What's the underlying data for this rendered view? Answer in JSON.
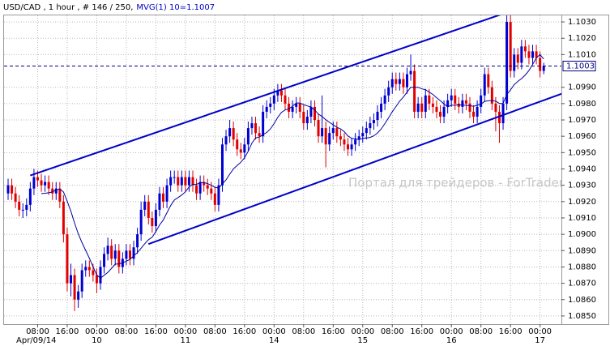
{
  "chart_data": {
    "type": "candlestick",
    "title": "USD/CAD , 1 hour , # 146 / 250,",
    "indicator_label": "MVG(1) 10=1.1007",
    "watermark": "Портал для трейдеров - ForTrader.ru",
    "up_color": "#0000d0",
    "down_color": "#e00000",
    "ma_color": "#0000a0",
    "channel_color": "#0000c8",
    "ylim": [
      1.0845,
      1.1034
    ],
    "yticks": [
      {
        "value": 1.085,
        "label": "1.0850"
      },
      {
        "value": 1.086,
        "label": "1.0860"
      },
      {
        "value": 1.087,
        "label": "1.0870"
      },
      {
        "value": 1.088,
        "label": "1.0880"
      },
      {
        "value": 1.089,
        "label": "1.0890"
      },
      {
        "value": 1.09,
        "label": "1.0900"
      },
      {
        "value": 1.091,
        "label": "1.0910"
      },
      {
        "value": 1.092,
        "label": "1.0920"
      },
      {
        "value": 1.093,
        "label": "1.0930"
      },
      {
        "value": 1.094,
        "label": "1.0940"
      },
      {
        "value": 1.095,
        "label": "1.0950"
      },
      {
        "value": 1.096,
        "label": "1.0960"
      },
      {
        "value": 1.097,
        "label": "1.0970"
      },
      {
        "value": 1.098,
        "label": "1.0980"
      },
      {
        "value": 1.099,
        "label": "1.0990"
      },
      {
        "value": 1.101,
        "label": "1.1010"
      },
      {
        "value": 1.102,
        "label": "1.1020"
      },
      {
        "value": 1.103,
        "label": "1.1030"
      }
    ],
    "grid": true,
    "categories": [
      null,
      null,
      null,
      null,
      null,
      null,
      null,
      null,
      "08:00",
      null,
      null,
      null,
      null,
      null,
      null,
      null,
      "16:00",
      null,
      null,
      null,
      null,
      null,
      null,
      null,
      "00:00",
      null,
      null,
      null,
      null,
      null,
      null,
      null,
      "08:00",
      null,
      null,
      null,
      null,
      null,
      null,
      null,
      "16:00",
      null,
      null,
      null,
      null,
      null,
      null,
      null,
      "00:00",
      null,
      null,
      null,
      null,
      null,
      null,
      null,
      "08:00",
      null,
      null,
      null,
      null,
      null,
      null,
      null,
      "16:00",
      null,
      null,
      null,
      null,
      null,
      null,
      null,
      "00:00",
      null,
      null,
      null,
      null,
      null,
      null,
      null,
      "08:00",
      null,
      null,
      null,
      null,
      null,
      null,
      null,
      "16:00",
      null,
      null,
      null,
      null,
      null,
      null,
      null,
      "00:00",
      null,
      null,
      null,
      null,
      null,
      null,
      null,
      "08:00",
      null,
      null,
      null,
      null,
      null,
      null,
      null,
      "16:00",
      null,
      null,
      null,
      null,
      null,
      null,
      null,
      "00:00",
      null,
      null,
      null,
      null,
      null,
      null,
      null,
      "08:00",
      null,
      null,
      null,
      null,
      null,
      null,
      null,
      "16:00",
      null,
      null,
      null,
      null,
      null,
      null,
      null,
      "00:00",
      null
    ],
    "day_labels": [
      "Apr/09/14",
      null,
      null,
      null,
      null,
      null,
      null,
      null,
      null,
      null,
      null,
      null,
      null,
      null,
      null,
      null,
      null,
      null,
      null,
      null,
      null,
      null,
      null,
      null,
      "10",
      null,
      null,
      null,
      null,
      null,
      null,
      null,
      null,
      null,
      null,
      null,
      null,
      null,
      null,
      null,
      null,
      null,
      null,
      null,
      null,
      null,
      null,
      null,
      "11",
      null,
      null,
      null,
      null,
      null,
      null,
      null,
      null,
      null,
      null,
      null,
      null,
      null,
      null,
      null,
      null,
      null,
      null,
      null,
      null,
      null,
      null,
      null,
      "14",
      null,
      null,
      null,
      null,
      null,
      null,
      null,
      null,
      null,
      null,
      null,
      null,
      null,
      null,
      null,
      null,
      null,
      null,
      null,
      null,
      null,
      null,
      null,
      "15",
      null,
      null,
      null,
      null,
      null,
      null,
      null,
      null,
      null,
      null,
      null,
      null,
      null,
      null,
      null,
      null,
      null,
      null,
      null,
      null,
      null,
      null,
      null,
      "16",
      null,
      null,
      null,
      null,
      null,
      null,
      null,
      null,
      null,
      null,
      null,
      null,
      null,
      null,
      null,
      null,
      null,
      null,
      null,
      null,
      null,
      null,
      null,
      "17",
      null
    ],
    "open": [
      1.0925,
      1.093,
      1.0925,
      1.092,
      1.0915,
      1.0915,
      1.0918,
      1.0928,
      1.0935,
      1.0933,
      1.093,
      1.0932,
      1.0928,
      1.0925,
      1.0928,
      1.092,
      1.09,
      1.087,
      1.0875,
      1.086,
      1.0865,
      1.0878,
      1.088,
      1.0878,
      1.0875,
      1.087,
      1.088,
      1.0888,
      1.0893,
      1.0885,
      1.089,
      1.088,
      1.0885,
      1.089,
      1.0885,
      1.0892,
      1.09,
      1.0915,
      1.092,
      1.091,
      1.0905,
      1.0915,
      1.0925,
      1.092,
      1.093,
      1.0935,
      1.0935,
      1.093,
      1.0935,
      1.093,
      1.0935,
      1.093,
      1.0925,
      1.0932,
      1.093,
      1.0928,
      1.0925,
      1.0918,
      1.093,
      1.0955,
      1.096,
      1.0965,
      1.0958,
      1.0952,
      1.095,
      1.0955,
      1.0965,
      1.0968,
      1.0962,
      1.096,
      1.0975,
      1.0978,
      1.098,
      1.0985,
      1.0988,
      1.0985,
      1.098,
      1.0975,
      1.0978,
      1.098,
      1.0975,
      1.0968,
      1.0972,
      1.0978,
      1.097,
      1.096,
      1.0965,
      1.0955,
      1.0962,
      1.0965,
      1.096,
      1.0958,
      1.0955,
      1.0952,
      1.0955,
      1.0958,
      1.096,
      1.0962,
      1.0965,
      1.0968,
      1.097,
      1.0975,
      1.098,
      1.0985,
      1.099,
      1.0995,
      1.0992,
      1.0995,
      1.099,
      1.0998,
      1.1,
      1.0975,
      1.098,
      1.0975,
      1.0985,
      1.098,
      1.0978,
      1.0975,
      1.0972,
      1.0978,
      1.0982,
      1.0985,
      1.098,
      1.0978,
      1.0982,
      1.098,
      1.0975,
      1.0972,
      1.0978,
      1.0985,
      1.0998,
      1.099,
      1.098,
      1.0975,
      1.0968,
      1.098,
      1.103,
      1.1,
      1.101,
      1.1005,
      1.1015,
      1.1012,
      1.1008,
      1.1012,
      1.1008,
      1.1
    ],
    "high": [
      1.0934,
      1.0934,
      1.0929,
      1.0924,
      1.0919,
      1.0922,
      1.0932,
      1.094,
      1.0939,
      1.0937,
      1.0936,
      1.0936,
      1.0932,
      1.0932,
      1.0932,
      1.0924,
      1.0904,
      1.0882,
      1.0879,
      1.0869,
      1.0882,
      1.0884,
      1.0884,
      1.0882,
      1.0879,
      1.0884,
      1.0892,
      1.0898,
      1.0897,
      1.0894,
      1.0894,
      1.0889,
      1.0894,
      1.0894,
      1.0896,
      1.0904,
      1.092,
      1.0924,
      1.0924,
      1.0914,
      1.0919,
      1.0929,
      1.0929,
      1.0934,
      1.0939,
      1.0939,
      1.0939,
      1.0939,
      1.0939,
      1.0939,
      1.0939,
      1.0934,
      1.0936,
      1.0936,
      1.0934,
      1.0932,
      1.0929,
      1.0934,
      1.0959,
      1.0964,
      1.097,
      1.0969,
      1.0962,
      1.0956,
      1.0959,
      1.0969,
      1.0972,
      1.0972,
      1.0966,
      1.0979,
      1.0982,
      1.0984,
      1.0989,
      1.0992,
      1.0992,
      1.0989,
      1.0984,
      1.0982,
      1.0984,
      1.0984,
      1.0979,
      1.0976,
      1.0982,
      1.0982,
      1.0974,
      1.0985,
      1.0969,
      1.0966,
      1.0969,
      1.0969,
      1.0964,
      1.0962,
      1.0959,
      1.0959,
      1.0962,
      1.0964,
      1.0966,
      1.0969,
      1.0972,
      1.0974,
      1.0979,
      1.0984,
      1.0989,
      1.0994,
      1.0999,
      1.0999,
      1.0999,
      1.0999,
      1.1002,
      1.101,
      1.1004,
      1.0984,
      1.0984,
      1.0989,
      1.0989,
      1.0984,
      1.0982,
      1.0979,
      1.0982,
      1.0986,
      1.0989,
      1.0989,
      1.0984,
      1.0986,
      1.0986,
      1.0984,
      1.0979,
      1.0982,
      1.0989,
      1.1002,
      1.1002,
      1.0994,
      1.0984,
      1.0979,
      1.0984,
      1.1034,
      1.1034,
      1.1014,
      1.1014,
      1.1019,
      1.1019,
      1.1016,
      1.1016,
      1.1016,
      1.1012,
      1.1005
    ],
    "low": [
      1.0921,
      1.0921,
      1.0916,
      1.0911,
      1.091,
      1.0911,
      1.0914,
      1.0924,
      1.0929,
      1.0926,
      1.0926,
      1.0924,
      1.0921,
      1.0921,
      1.0916,
      1.0895,
      1.0865,
      1.0862,
      1.0853,
      1.0855,
      1.0861,
      1.0874,
      1.0874,
      1.0871,
      1.0864,
      1.0866,
      1.0876,
      1.0884,
      1.0881,
      1.0881,
      1.0876,
      1.0876,
      1.0881,
      1.0881,
      1.0881,
      1.0888,
      1.0896,
      1.0911,
      1.0906,
      1.0901,
      1.0901,
      1.0911,
      1.0916,
      1.0916,
      1.0926,
      1.0931,
      1.0926,
      1.0926,
      1.0926,
      1.0926,
      1.0926,
      1.0921,
      1.0921,
      1.0926,
      1.0924,
      1.0921,
      1.0914,
      1.0914,
      1.0926,
      1.0951,
      1.0956,
      1.0954,
      1.0948,
      1.0946,
      1.0946,
      1.0951,
      1.0961,
      1.0958,
      1.0956,
      1.0956,
      1.0971,
      1.0974,
      1.0976,
      1.0981,
      1.0981,
      1.0976,
      1.0971,
      1.0971,
      1.0974,
      1.0971,
      1.0964,
      1.0964,
      1.0968,
      1.0966,
      1.0956,
      1.0956,
      1.0941,
      1.0951,
      1.0958,
      1.0956,
      1.0954,
      1.0951,
      1.0948,
      1.0948,
      1.0951,
      1.0954,
      1.0956,
      1.0958,
      1.0961,
      1.0964,
      1.0966,
      1.0971,
      1.0976,
      1.0981,
      1.0986,
      1.0988,
      1.0988,
      1.0986,
      1.0986,
      1.0994,
      1.0971,
      1.0971,
      1.0971,
      1.0971,
      1.0976,
      1.0974,
      1.0971,
      1.0968,
      1.0968,
      1.0974,
      1.0978,
      1.0976,
      1.0974,
      1.0974,
      1.0976,
      1.0971,
      1.0968,
      1.0968,
      1.0974,
      1.0981,
      1.0986,
      1.0976,
      1.0963,
      1.0956,
      1.0964,
      1.0976,
      1.0996,
      1.0996,
      1.1001,
      1.1001,
      1.1008,
      1.1004,
      1.1004,
      1.1004,
      1.0996,
      1.0998
    ],
    "close": [
      1.093,
      1.0925,
      1.092,
      1.0915,
      1.0915,
      1.0918,
      1.0928,
      1.0935,
      1.0933,
      1.093,
      1.0932,
      1.0928,
      1.0925,
      1.0928,
      1.092,
      1.09,
      1.087,
      1.0875,
      1.086,
      1.0865,
      1.0878,
      1.088,
      1.0878,
      1.0875,
      1.087,
      1.088,
      1.0888,
      1.0893,
      1.0885,
      1.089,
      1.088,
      1.0885,
      1.089,
      1.0885,
      1.0892,
      1.09,
      1.0915,
      1.092,
      1.091,
      1.0905,
      1.0915,
      1.0925,
      1.092,
      1.093,
      1.0935,
      1.0935,
      1.093,
      1.0935,
      1.093,
      1.0935,
      1.093,
      1.0925,
      1.0932,
      1.093,
      1.0928,
      1.0925,
      1.0918,
      1.093,
      1.0955,
      1.096,
      1.0965,
      1.0958,
      1.0952,
      1.095,
      1.0955,
      1.0965,
      1.0968,
      1.0962,
      1.096,
      1.0975,
      1.0978,
      1.098,
      1.0985,
      1.0988,
      1.0985,
      1.098,
      1.0975,
      1.0978,
      1.098,
      1.0975,
      1.0968,
      1.0972,
      1.0978,
      1.097,
      1.096,
      1.0965,
      1.0955,
      1.0962,
      1.0965,
      1.096,
      1.0958,
      1.0955,
      1.0952,
      1.0955,
      1.0958,
      1.096,
      1.0962,
      1.0965,
      1.0968,
      1.097,
      1.0975,
      1.098,
      1.0985,
      1.099,
      1.0995,
      1.0992,
      1.0995,
      1.099,
      1.0998,
      1.1,
      1.0975,
      1.098,
      1.0975,
      1.0985,
      1.098,
      1.0978,
      1.0975,
      1.0972,
      1.0978,
      1.0982,
      1.0985,
      1.098,
      1.0978,
      1.0982,
      1.098,
      1.0975,
      1.0972,
      1.0978,
      1.0985,
      1.0998,
      1.099,
      1.098,
      1.0975,
      1.0968,
      1.098,
      1.103,
      1.1,
      1.101,
      1.1005,
      1.1015,
      1.1012,
      1.1008,
      1.1012,
      1.1008,
      1.1,
      1.1003
    ],
    "channel": [
      {
        "x": [
          6,
          134
        ],
        "y": [
          1.0936,
          1.1035
        ]
      },
      {
        "x": [
          38,
          151
        ],
        "y": [
          1.0894,
          1.0987
        ]
      }
    ]
  }
}
